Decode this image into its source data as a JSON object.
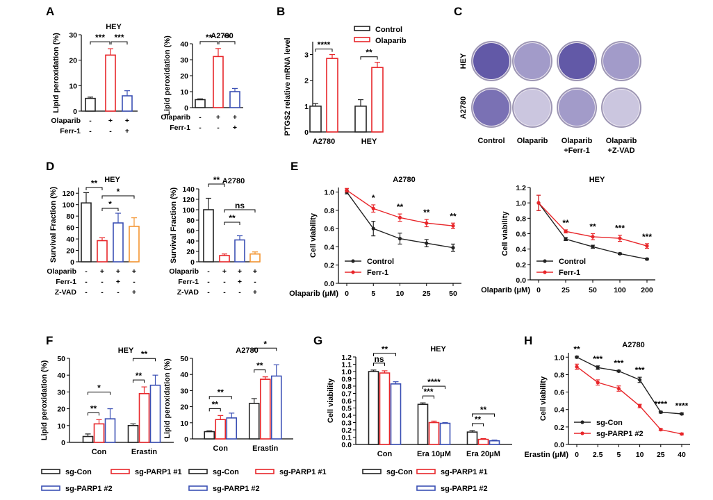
{
  "colors": {
    "control": "#222222",
    "red": "#e8262a",
    "blue": "#3a4fb4",
    "orange": "#f39431",
    "well_stain": "#4a3f9a",
    "well_bg": "#ece8f1"
  },
  "panel_labels": {
    "A": "A",
    "B": "B",
    "C": "C",
    "D": "D",
    "E": "E",
    "F": "F",
    "G": "G",
    "H": "H"
  },
  "colony_assay": {
    "row_labels": [
      "HEY",
      "A2780"
    ],
    "columns": [
      "Control",
      "Olaparib",
      "Olaparib\n+Ferr-1",
      "Olaparib\n+Z-VAD"
    ]
  },
  "chart_data": [
    {
      "id": "A1",
      "type": "bar",
      "title": "HEY",
      "ylabel": "Lipid peroxidation (%)",
      "ylim": [
        0,
        30
      ],
      "yticks": [
        0,
        10,
        20,
        30
      ],
      "values": [
        5,
        22,
        6
      ],
      "errors": [
        0.5,
        2.5,
        2
      ],
      "colors": [
        "control",
        "red",
        "blue"
      ],
      "treatments": [
        {
          "label": "Olaparib",
          "marks": [
            "-",
            "+",
            "+"
          ]
        },
        {
          "label": "Ferr-1",
          "marks": [
            "-",
            "-",
            "+"
          ]
        }
      ],
      "significance": [
        {
          "from": 0,
          "to": 1,
          "text": "***"
        },
        {
          "from": 1,
          "to": 2,
          "text": "***"
        }
      ]
    },
    {
      "id": "A2",
      "type": "bar",
      "title": "A2780",
      "ylabel": "Lipid peroxidation (%)",
      "ylim": [
        0,
        40
      ],
      "yticks": [
        0,
        10,
        20,
        30,
        40
      ],
      "values": [
        5,
        32,
        10
      ],
      "errors": [
        0.5,
        5,
        2
      ],
      "colors": [
        "control",
        "red",
        "blue"
      ],
      "treatments": [
        {
          "label": "Olaparib",
          "marks": [
            "-",
            "+",
            "+"
          ]
        },
        {
          "label": "Ferr-1",
          "marks": [
            "-",
            "-",
            "+"
          ]
        }
      ],
      "significance": [
        {
          "from": 0,
          "to": 1,
          "text": "**"
        },
        {
          "from": 1,
          "to": 2,
          "text": "**"
        }
      ]
    },
    {
      "id": "B",
      "type": "bar",
      "ylabel": "PTGS2 relative mRNA level",
      "ylim": [
        0,
        3.5
      ],
      "yticks": [
        0,
        1,
        2,
        3
      ],
      "categories": [
        "A2780",
        "HEY"
      ],
      "series": [
        {
          "name": "Control",
          "color": "control",
          "values": [
            1.0,
            1.0
          ],
          "errors": [
            0.1,
            0.25
          ]
        },
        {
          "name": "Olaparib",
          "color": "red",
          "values": [
            2.85,
            2.5
          ],
          "errors": [
            0.15,
            0.2
          ]
        }
      ],
      "legend": "top",
      "significance": [
        {
          "group": 0,
          "text": "****"
        },
        {
          "group": 1,
          "text": "**"
        }
      ]
    },
    {
      "id": "D1",
      "type": "bar",
      "title": "HEY",
      "ylabel": "Survival Fraction (%)",
      "ylim": [
        0,
        130
      ],
      "yticks": [
        0,
        20,
        40,
        60,
        80,
        100,
        120
      ],
      "values": [
        103,
        37,
        68,
        62
      ],
      "errors": [
        18,
        5,
        17,
        15
      ],
      "colors": [
        "control",
        "red",
        "blue",
        "orange"
      ],
      "treatments": [
        {
          "label": "Olaparib",
          "marks": [
            "-",
            "+",
            "+",
            "+"
          ]
        },
        {
          "label": "Ferr-1",
          "marks": [
            "-",
            "-",
            "+",
            "-"
          ]
        },
        {
          "label": "Z-VAD",
          "marks": [
            "-",
            "-",
            "-",
            "+"
          ]
        }
      ],
      "significance": [
        {
          "from": 0,
          "to": 1,
          "text": "**"
        },
        {
          "from": 1,
          "to": 2,
          "text": "*"
        },
        {
          "from": 1,
          "to": 3,
          "text": "*"
        }
      ]
    },
    {
      "id": "D2",
      "type": "bar",
      "title": "A2780",
      "ylabel": "Survival Fraction (%)",
      "ylim": [
        0,
        140
      ],
      "yticks": [
        0,
        20,
        40,
        60,
        80,
        100,
        120,
        140
      ],
      "values": [
        100,
        12,
        42,
        15
      ],
      "errors": [
        22,
        3,
        8,
        4
      ],
      "colors": [
        "control",
        "red",
        "blue",
        "orange"
      ],
      "treatments": [
        {
          "label": "Olaparib",
          "marks": [
            "-",
            "+",
            "+",
            "+"
          ]
        },
        {
          "label": "Ferr-1",
          "marks": [
            "-",
            "-",
            "+",
            "-"
          ]
        },
        {
          "label": "Z-VAD",
          "marks": [
            "-",
            "-",
            "-",
            "+"
          ]
        }
      ],
      "significance": [
        {
          "from": 0,
          "to": 1,
          "text": "**"
        },
        {
          "from": 1,
          "to": 2,
          "text": "**"
        },
        {
          "from": 1,
          "to": 3,
          "text": "ns"
        }
      ]
    },
    {
      "id": "E1",
      "type": "line",
      "title": "A2780",
      "ylabel": "Cell viability",
      "xlabel": "Olaparib (μM)",
      "ylim": [
        0,
        1.05
      ],
      "yticks": [
        0.0,
        0.2,
        0.4,
        0.6,
        0.8,
        1.0
      ],
      "x": [
        "0",
        "5",
        "10",
        "25",
        "50"
      ],
      "series": [
        {
          "name": "Control",
          "color": "control",
          "values": [
            1.0,
            0.6,
            0.49,
            0.44,
            0.39
          ],
          "errors": [
            0.02,
            0.08,
            0.06,
            0.04,
            0.04
          ]
        },
        {
          "name": "Ferr-1",
          "color": "red",
          "values": [
            1.02,
            0.82,
            0.72,
            0.66,
            0.63
          ],
          "errors": [
            0.02,
            0.04,
            0.04,
            0.04,
            0.03
          ]
        }
      ],
      "legend": "bottom-left",
      "point_significance": [
        "",
        "*",
        "**",
        "**",
        "**"
      ]
    },
    {
      "id": "E2",
      "type": "line",
      "title": "HEY",
      "ylabel": "Cell viability",
      "xlabel": "Olaparib (μM)",
      "ylim": [
        0,
        1.2
      ],
      "yticks": [
        0.0,
        0.2,
        0.4,
        0.6,
        0.8,
        1.0,
        1.2
      ],
      "x": [
        "0",
        "25",
        "50",
        "100",
        "200"
      ],
      "series": [
        {
          "name": "Control",
          "color": "control",
          "values": [
            1.0,
            0.53,
            0.43,
            0.34,
            0.27
          ],
          "errors": [
            0.1,
            0.02,
            0.02,
            0.01,
            0.01
          ]
        },
        {
          "name": "Ferr-1",
          "color": "red",
          "values": [
            1.0,
            0.63,
            0.56,
            0.54,
            0.44
          ],
          "errors": [
            0.1,
            0.02,
            0.04,
            0.04,
            0.03
          ]
        }
      ],
      "legend": "bottom-left",
      "point_significance": [
        "",
        "**",
        "**",
        "***",
        "***"
      ]
    },
    {
      "id": "F1",
      "type": "bar",
      "title": "HEY",
      "ylabel": "Lipid peroxidation (%)",
      "ylim": [
        0,
        50
      ],
      "yticks": [
        0,
        10,
        20,
        30,
        40,
        50
      ],
      "categories": [
        "Con",
        "Erastin"
      ],
      "series": [
        {
          "name": "sg-Con",
          "color": "control",
          "values": [
            3.5,
            10
          ],
          "errors": [
            1.5,
            1
          ]
        },
        {
          "name": "sg-PARP1 #1",
          "color": "red",
          "values": [
            11,
            29
          ],
          "errors": [
            2.5,
            4
          ]
        },
        {
          "name": "sg-PARP1 #2",
          "color": "blue",
          "values": [
            14,
            34
          ],
          "errors": [
            6,
            6
          ]
        }
      ],
      "significance": [
        {
          "group": 0,
          "from": 0,
          "to": 1,
          "text": "**"
        },
        {
          "group": 0,
          "from": 0,
          "to": 2,
          "text": "*"
        },
        {
          "group": 1,
          "from": 0,
          "to": 1,
          "text": "**"
        },
        {
          "group": 1,
          "from": 0,
          "to": 2,
          "text": "**"
        }
      ]
    },
    {
      "id": "F2",
      "type": "bar",
      "title": "A2780",
      "ylabel": "Lipid peroxidation (%)",
      "ylim": [
        0,
        50
      ],
      "yticks": [
        0,
        10,
        20,
        30,
        40,
        50
      ],
      "categories": [
        "Con",
        "Erastin"
      ],
      "series": [
        {
          "name": "sg-Con",
          "color": "control",
          "values": [
            4.5,
            22
          ],
          "errors": [
            0.5,
            3
          ]
        },
        {
          "name": "sg-PARP1 #1",
          "color": "red",
          "values": [
            12,
            37
          ],
          "errors": [
            2.5,
            1.5
          ]
        },
        {
          "name": "sg-PARP1 #2",
          "color": "blue",
          "values": [
            13,
            39
          ],
          "errors": [
            3,
            7
          ]
        }
      ],
      "significance": [
        {
          "group": 0,
          "from": 0,
          "to": 1,
          "text": "**"
        },
        {
          "group": 0,
          "from": 0,
          "to": 2,
          "text": "**"
        },
        {
          "group": 1,
          "from": 0,
          "to": 1,
          "text": "**"
        },
        {
          "group": 1,
          "from": 0,
          "to": 2,
          "text": "*"
        }
      ]
    },
    {
      "id": "G",
      "type": "bar",
      "title": "HEY",
      "ylabel": "Cell viability",
      "ylim": [
        0,
        1.2
      ],
      "yticks": [
        0.0,
        0.1,
        0.2,
        0.3,
        0.4,
        0.5,
        0.6,
        0.7,
        0.8,
        0.9,
        1.0,
        1.1,
        1.2
      ],
      "categories": [
        "Con",
        "Era 10μM",
        "Era 20μM"
      ],
      "series": [
        {
          "name": "sg-Con",
          "color": "control",
          "values": [
            1.0,
            0.55,
            0.17
          ],
          "errors": [
            0.02,
            0.02,
            0.02
          ]
        },
        {
          "name": "sg-PARP1 #1",
          "color": "red",
          "values": [
            0.98,
            0.3,
            0.07
          ],
          "errors": [
            0.03,
            0.02,
            0.01
          ]
        },
        {
          "name": "sg-PARP1 #2",
          "color": "blue",
          "values": [
            0.83,
            0.29,
            0.05
          ],
          "errors": [
            0.03,
            0.01,
            0.01
          ]
        }
      ],
      "significance": [
        {
          "group": 0,
          "from": 0,
          "to": 1,
          "text": "ns"
        },
        {
          "group": 0,
          "from": 0,
          "to": 2,
          "text": "**"
        },
        {
          "group": 1,
          "from": 0,
          "to": 1,
          "text": "***"
        },
        {
          "group": 1,
          "from": 0,
          "to": 2,
          "text": "****"
        },
        {
          "group": 2,
          "from": 0,
          "to": 1,
          "text": "**"
        },
        {
          "group": 2,
          "from": 0,
          "to": 2,
          "text": "**"
        }
      ]
    },
    {
      "id": "H",
      "type": "line",
      "title": "A2780",
      "ylabel": "Cell viability",
      "xlabel": "Erastin (μM)",
      "ylim": [
        0,
        1.05
      ],
      "yticks": [
        0.0,
        0.2,
        0.4,
        0.6,
        0.8,
        1.0
      ],
      "x": [
        "0",
        "2.5",
        "5",
        "10",
        "25",
        "40"
      ],
      "series": [
        {
          "name": "sg-Con",
          "color": "control",
          "values": [
            1.0,
            0.88,
            0.84,
            0.74,
            0.37,
            0.35
          ],
          "errors": [
            0.01,
            0.02,
            0.01,
            0.03,
            0.01,
            0.01
          ]
        },
        {
          "name": "sg-PARP1 #2",
          "color": "red",
          "values": [
            0.89,
            0.71,
            0.64,
            0.44,
            0.17,
            0.12
          ],
          "errors": [
            0.03,
            0.03,
            0.03,
            0.02,
            0.01,
            0.01
          ]
        }
      ],
      "legend": "bottom-left",
      "point_significance": [
        "**",
        "***",
        "***",
        "***",
        "****",
        "****"
      ]
    }
  ]
}
